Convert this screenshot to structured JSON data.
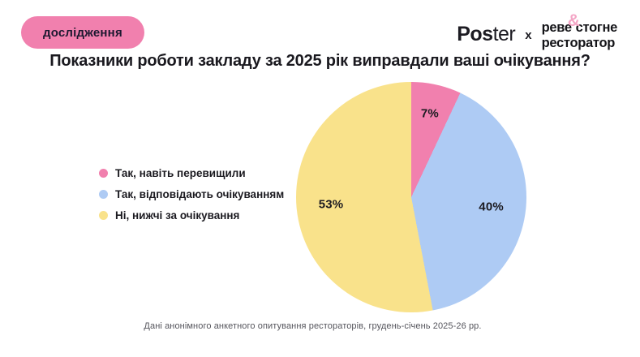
{
  "badge": {
    "label": "дослідження",
    "bg": "#F180AE",
    "text_color": "#1D1830"
  },
  "header_logos": {
    "poster_bold": "Pos",
    "poster_light": "ter",
    "separator": "x",
    "partner_word1": "реве",
    "partner_amp": "&",
    "partner_word2": "стогне",
    "partner_line2": "ресторатор",
    "amp_color": "#F4A6C6"
  },
  "title": "Показники роботи закладу за 2025 рік виправдали ваші очікування?",
  "legend": {
    "items": [
      {
        "label": "Так, навіть перевищили",
        "color": "#F180AE"
      },
      {
        "label": "Так, відповідають очікуванням",
        "color": "#AECBF4"
      },
      {
        "label": "Ні, нижчі за очікування",
        "color": "#F9E28B"
      }
    ]
  },
  "chart_data": {
    "type": "pie",
    "title": "Показники роботи закладу за 2025 рік виправдали ваші очікування?",
    "labels": [
      "Так, навіть перевищили",
      "Так, відповідають очікуванням",
      "Ні, нижчі за очікування"
    ],
    "values": [
      7,
      40,
      53
    ],
    "unit": "%",
    "colors": [
      "#F180AE",
      "#AECBF4",
      "#F9E28B"
    ],
    "data_labels": [
      "7%",
      "40%",
      "53%"
    ],
    "start_angle_deg": 0,
    "direction": "clockwise",
    "legend_position": "left"
  },
  "footer": {
    "note": "Дані анонімного анкетного опитування рестораторів, грудень-січень 2025-26 рр."
  }
}
